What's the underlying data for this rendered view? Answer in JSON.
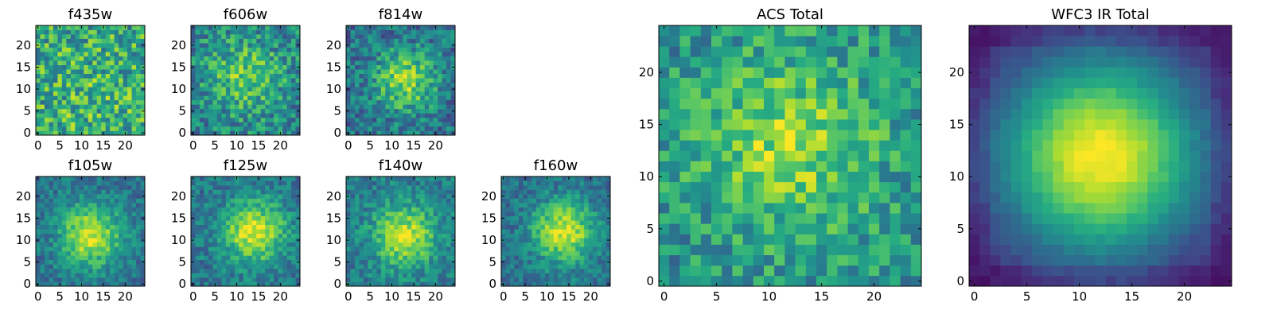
{
  "chart_data": [
    {
      "type": "heatmap",
      "title": "f435w",
      "x_ticks": [
        "0",
        "5",
        "10",
        "15",
        "20"
      ],
      "y_ticks": [
        "0",
        "5",
        "10",
        "15",
        "20"
      ],
      "xlim": [
        0,
        25
      ],
      "ylim": [
        0,
        25
      ],
      "colormap": "viridis",
      "grid": false
    },
    {
      "type": "heatmap",
      "title": "f606w",
      "x_ticks": [
        "0",
        "5",
        "10",
        "15",
        "20"
      ],
      "y_ticks": [
        "0",
        "5",
        "10",
        "15",
        "20"
      ],
      "xlim": [
        0,
        25
      ],
      "ylim": [
        0,
        25
      ],
      "colormap": "viridis",
      "grid": false
    },
    {
      "type": "heatmap",
      "title": "f814w",
      "x_ticks": [
        "0",
        "5",
        "10",
        "15",
        "20"
      ],
      "y_ticks": [
        "0",
        "5",
        "10",
        "15",
        "20"
      ],
      "xlim": [
        0,
        25
      ],
      "ylim": [
        0,
        25
      ],
      "colormap": "viridis",
      "grid": false
    },
    {
      "type": "heatmap",
      "title": "f105w",
      "x_ticks": [
        "0",
        "5",
        "10",
        "15",
        "20"
      ],
      "y_ticks": [
        "0",
        "5",
        "10",
        "15",
        "20"
      ],
      "xlim": [
        0,
        25
      ],
      "ylim": [
        0,
        25
      ],
      "colormap": "viridis",
      "grid": false
    },
    {
      "type": "heatmap",
      "title": "f125w",
      "x_ticks": [
        "0",
        "5",
        "10",
        "15",
        "20"
      ],
      "y_ticks": [
        "0",
        "5",
        "10",
        "15",
        "20"
      ],
      "xlim": [
        0,
        25
      ],
      "ylim": [
        0,
        25
      ],
      "colormap": "viridis",
      "grid": false
    },
    {
      "type": "heatmap",
      "title": "f140w",
      "x_ticks": [
        "0",
        "5",
        "10",
        "15",
        "20"
      ],
      "y_ticks": [
        "0",
        "5",
        "10",
        "15",
        "20"
      ],
      "xlim": [
        0,
        25
      ],
      "ylim": [
        0,
        25
      ],
      "colormap": "viridis",
      "grid": false
    },
    {
      "type": "heatmap",
      "title": "f160w",
      "x_ticks": [
        "0",
        "5",
        "10",
        "15",
        "20"
      ],
      "y_ticks": [
        "0",
        "5",
        "10",
        "15",
        "20"
      ],
      "xlim": [
        0,
        25
      ],
      "ylim": [
        0,
        25
      ],
      "colormap": "viridis",
      "grid": false
    },
    {
      "type": "heatmap",
      "title": "ACS Total",
      "x_ticks": [
        "0",
        "5",
        "10",
        "15",
        "20"
      ],
      "y_ticks": [
        "0",
        "5",
        "10",
        "15",
        "20"
      ],
      "xlim": [
        0,
        25
      ],
      "ylim": [
        0,
        25
      ],
      "colormap": "viridis",
      "grid": false
    },
    {
      "type": "heatmap",
      "title": "WFC3 IR Total",
      "x_ticks": [
        "0",
        "5",
        "10",
        "15",
        "20"
      ],
      "y_ticks": [
        "0",
        "5",
        "10",
        "15",
        "20"
      ],
      "xlim": [
        0,
        25
      ],
      "ylim": [
        0,
        25
      ],
      "colormap": "viridis",
      "grid": false
    }
  ],
  "colors": {
    "viridis_low": "#440154",
    "viridis_mid": "#21918c",
    "viridis_high": "#fde725",
    "axis": "#000000"
  }
}
